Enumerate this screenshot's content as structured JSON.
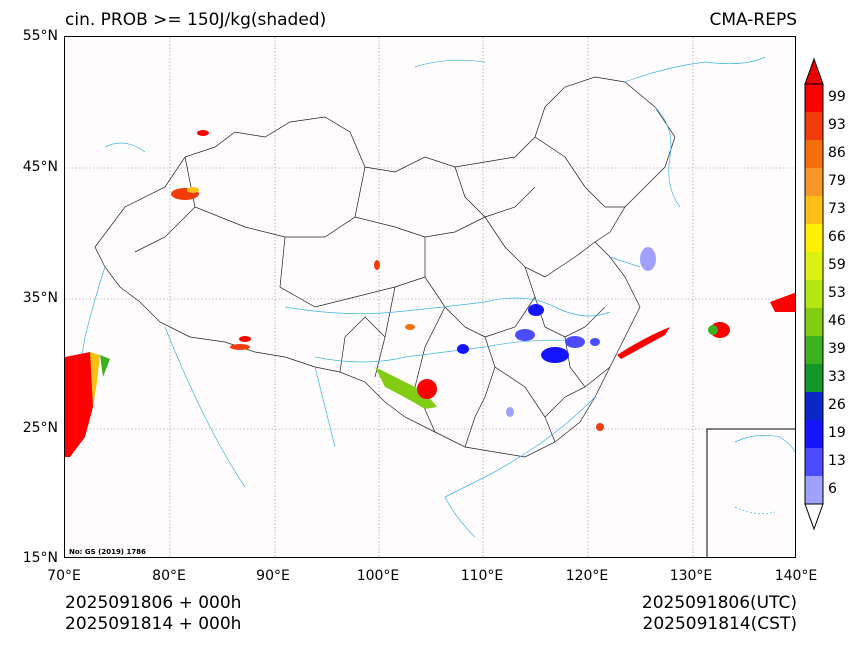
{
  "header": {
    "title_left": "cin. PROB >= 150J/kg(shaded)",
    "title_right": "CMA-REPS"
  },
  "axes": {
    "lat_labels": [
      "55°N",
      "45°N",
      "35°N",
      "25°N",
      "15°N"
    ],
    "lon_labels": [
      "70°E",
      "80°E",
      "90°E",
      "100°E",
      "110°E",
      "120°E",
      "130°E",
      "140°E"
    ]
  },
  "map": {
    "extent": {
      "lon": [
        70,
        140
      ],
      "lat": [
        15,
        55
      ]
    },
    "gridlines": true,
    "watermark": "No: GS (2019) 1786",
    "inset": true
  },
  "colorbar": {
    "labels": [
      "99",
      "93",
      "86",
      "79",
      "73",
      "66",
      "59",
      "53",
      "46",
      "39",
      "33",
      "26",
      "19",
      "13",
      "6"
    ],
    "colors": [
      "#ff0000",
      "#f03c0a",
      "#f46e0a",
      "#f8962a",
      "#fcc014",
      "#fff000",
      "#dcf014",
      "#b4e614",
      "#82cc14",
      "#3cb01e",
      "#149628",
      "#0a28c8",
      "#1414ff",
      "#4b4bff",
      "#a0a0ff"
    ],
    "extend": "both"
  },
  "footer": {
    "left_line1": "2025091806  +  000h",
    "left_line2": "2025091814  +  000h",
    "right_line1": "2025091806(UTC)",
    "right_line2": "2025091814(CST)"
  }
}
